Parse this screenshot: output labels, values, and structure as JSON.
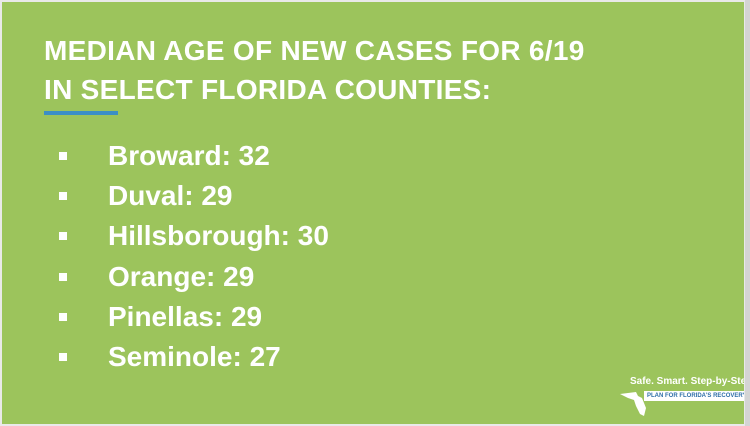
{
  "slide": {
    "title": [
      "MEDIAN AGE OF NEW CASES FOR 6/19",
      "IN SELECT FLORIDA COUNTIES:"
    ],
    "items": [
      "Broward: 32",
      "Duval: 29",
      "Hillsborough: 30",
      "Orange: 29",
      "Pinellas: 29",
      "Seminole: 27"
    ],
    "logo": {
      "tagline": "Safe. Smart. Step-by-Step.",
      "banner": "PLAN FOR FLORIDA'S RECOVERY"
    }
  }
}
